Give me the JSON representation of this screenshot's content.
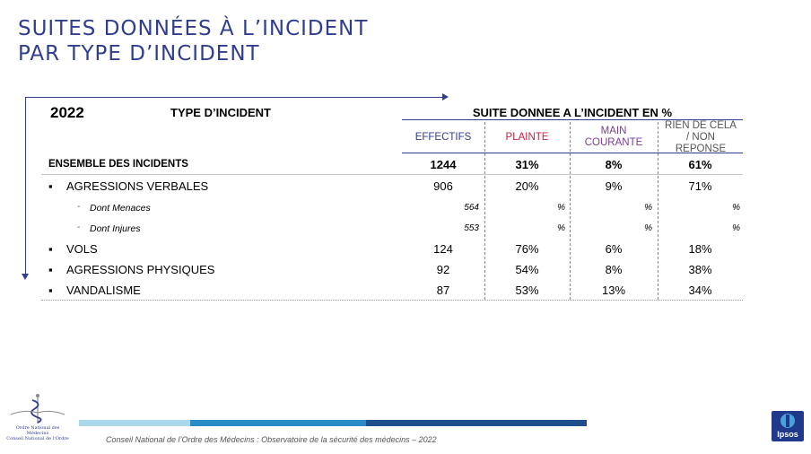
{
  "title": {
    "line1": "SUITES DONNÉES À L’INCIDENT",
    "line2": "PAR TYPE D’INCIDENT"
  },
  "table": {
    "year": "2022",
    "type_header": "TYPE D’INCIDENT",
    "suite_header": "SUITE DONNEE A L’INCIDENT EN %",
    "columns": [
      "EFFECTIFS",
      "PLAINTE",
      "MAIN COURANTE",
      "RIEN DE CELA / NON REPONSE"
    ],
    "rows": [
      {
        "label": "ENSEMBLE DES INCIDENTS",
        "effectifs": "1244",
        "plainte": "31%",
        "main_courante": "8%",
        "rien": "61%"
      },
      {
        "bullet": "▪",
        "label": "AGRESSIONS VERBALES",
        "effectifs": "906",
        "plainte": "20%",
        "main_courante": "9%",
        "rien": "71%"
      },
      {
        "dash": "-",
        "label": "Dont Menaces",
        "effectifs": "564",
        "plainte": "%",
        "main_courante": "%",
        "rien": "%"
      },
      {
        "dash": "-",
        "label": "Dont Injures",
        "effectifs": "553",
        "plainte": "%",
        "main_courante": "%",
        "rien": "%"
      },
      {
        "bullet": "▪",
        "label": "VOLS",
        "effectifs": "124",
        "plainte": "76%",
        "main_courante": "6%",
        "rien": "18%"
      },
      {
        "bullet": "▪",
        "label": "AGRESSIONS PHYSIQUES",
        "effectifs": "92",
        "plainte": "54%",
        "main_courante": "8%",
        "rien": "38%"
      },
      {
        "bullet": "▪",
        "label": "VANDALISME",
        "effectifs": "87",
        "plainte": "53%",
        "main_courante": "13%",
        "rien": "34%"
      }
    ]
  },
  "footer": {
    "text": "Conseil National de l’Ordre des Médecins : Observatoire de la sécurité des médecins – 2022"
  },
  "logos": {
    "left_name": "Ordre National des Médecins",
    "left_sub": "Conseil National de l'Ordre",
    "right_name": "Ipsos"
  },
  "colors": {
    "title": "#2f3e8f",
    "plainte": "#cc1f3c",
    "main_courante": "#7a3d96",
    "bar1": "#a8d8ea",
    "bar2": "#2a8bc5",
    "bar3": "#1f4e8c",
    "ipsos": "#1f3a8c"
  },
  "icons": {
    "left_logo": "caduceus-icon",
    "right_logo": "ipsos-logo-icon"
  }
}
